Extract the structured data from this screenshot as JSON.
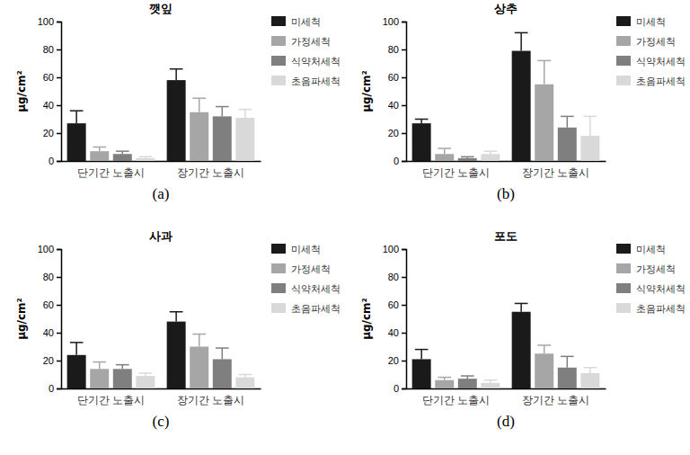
{
  "chart_data": [
    {
      "type": "bar",
      "title": "깻잎",
      "label": "(a)",
      "y_label": "μg/cm²",
      "categories": [
        "단기간 노출시",
        "장기간 노출시"
      ],
      "series": [
        {
          "name": "미세척",
          "color": "#1a1a1a",
          "values": [
            27,
            58
          ],
          "errors": [
            9,
            8
          ]
        },
        {
          "name": "가정세척",
          "color": "#a6a6a6",
          "values": [
            7,
            35
          ],
          "errors": [
            3,
            10
          ]
        },
        {
          "name": "식약처세척",
          "color": "#7f7f7f",
          "values": [
            5,
            32
          ],
          "errors": [
            2,
            7
          ]
        },
        {
          "name": "초음파세척",
          "color": "#d9d9d9",
          "values": [
            2,
            31
          ],
          "errors": [
            1,
            6
          ]
        }
      ],
      "ylim": [
        0,
        100
      ],
      "yticks": [
        0,
        20,
        40,
        60,
        80,
        100
      ]
    },
    {
      "type": "bar",
      "title": "상추",
      "label": "(b)",
      "y_label": "μg/cm²",
      "categories": [
        "단기간 노출시",
        "장기간 노출시"
      ],
      "series": [
        {
          "name": "미세척",
          "color": "#1a1a1a",
          "values": [
            27,
            79
          ],
          "errors": [
            3,
            13
          ]
        },
        {
          "name": "가정세척",
          "color": "#a6a6a6",
          "values": [
            5,
            55
          ],
          "errors": [
            4,
            17
          ]
        },
        {
          "name": "식약처세척",
          "color": "#7f7f7f",
          "values": [
            2,
            24
          ],
          "errors": [
            1,
            8
          ]
        },
        {
          "name": "초음파세척",
          "color": "#d9d9d9",
          "values": [
            5,
            18
          ],
          "errors": [
            2,
            14
          ]
        }
      ],
      "ylim": [
        0,
        100
      ],
      "yticks": [
        0,
        20,
        40,
        60,
        80,
        100
      ]
    },
    {
      "type": "bar",
      "title": "사과",
      "label": "(c)",
      "y_label": "μg/cm²",
      "categories": [
        "단기간 노출시",
        "장기간 노출시"
      ],
      "series": [
        {
          "name": "미세척",
          "color": "#1a1a1a",
          "values": [
            24,
            48
          ],
          "errors": [
            9,
            7
          ]
        },
        {
          "name": "가정세척",
          "color": "#a6a6a6",
          "values": [
            14,
            30
          ],
          "errors": [
            5,
            9
          ]
        },
        {
          "name": "식약처세척",
          "color": "#7f7f7f",
          "values": [
            14,
            21
          ],
          "errors": [
            3,
            8
          ]
        },
        {
          "name": "초음파세척",
          "color": "#d9d9d9",
          "values": [
            9,
            8
          ],
          "errors": [
            2,
            2
          ]
        }
      ],
      "ylim": [
        0,
        100
      ],
      "yticks": [
        0,
        20,
        40,
        60,
        80,
        100
      ]
    },
    {
      "type": "bar",
      "title": "포도",
      "label": "(d)",
      "y_label": "μg/cm²",
      "categories": [
        "단기간 노출시",
        "장기간 노출시"
      ],
      "series": [
        {
          "name": "미세척",
          "color": "#1a1a1a",
          "values": [
            21,
            55
          ],
          "errors": [
            7,
            6
          ]
        },
        {
          "name": "가정세척",
          "color": "#a6a6a6",
          "values": [
            6,
            25
          ],
          "errors": [
            2,
            6
          ]
        },
        {
          "name": "식약처세척",
          "color": "#7f7f7f",
          "values": [
            7,
            15
          ],
          "errors": [
            2,
            8
          ]
        },
        {
          "name": "초음파세척",
          "color": "#d9d9d9",
          "values": [
            4,
            11
          ],
          "errors": [
            2,
            4
          ]
        }
      ],
      "ylim": [
        0,
        100
      ],
      "yticks": [
        0,
        20,
        40,
        60,
        80,
        100
      ]
    }
  ]
}
